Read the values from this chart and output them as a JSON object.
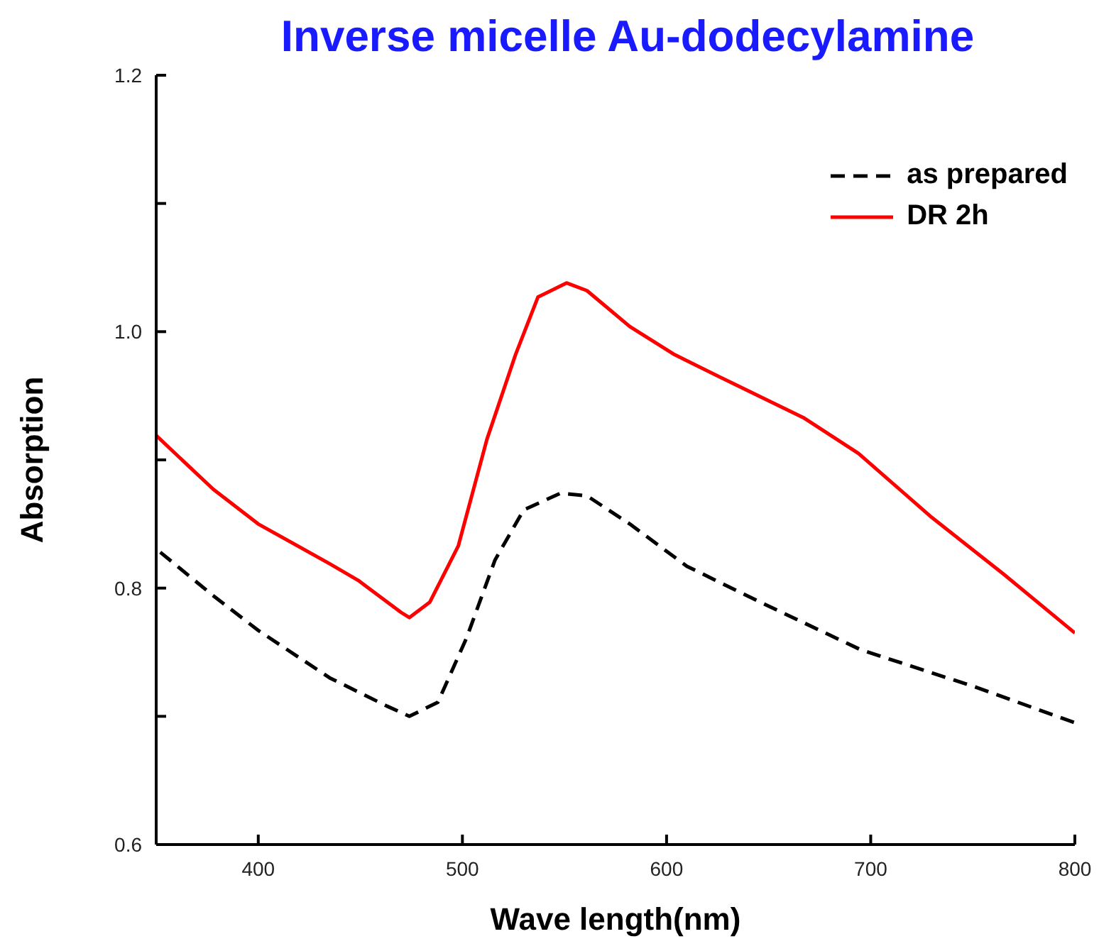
{
  "chart_data": {
    "type": "line",
    "title": "Inverse micelle Au-dodecylamine",
    "xlabel": "Wave length(nm)",
    "ylabel": "Absorption",
    "xlim": [
      350,
      800
    ],
    "xticks": [
      400,
      500,
      600,
      700,
      800
    ],
    "ylim": [
      0.6,
      1.2
    ],
    "yticks": [
      0.6,
      {
        "value": 0.7,
        "label": null
      },
      0.8,
      {
        "value": 0.9,
        "label": null
      },
      {
        "value": 1.0,
        "label": "1.0"
      },
      {
        "value": 1.1,
        "label": null
      },
      1.2
    ],
    "grid": false,
    "legend": "top right",
    "marker": "none",
    "series": [
      {
        "name": "as prepared",
        "color": "#000000",
        "line_style": "dashed",
        "x": [
          352,
          378,
          400,
          435,
          463,
          474,
          488,
          502,
          516,
          530,
          548,
          561,
          582,
          610,
          646,
          695,
          751,
          800
        ],
        "values": [
          0.828,
          0.794,
          0.767,
          0.73,
          0.708,
          0.7,
          0.711,
          0.761,
          0.822,
          0.861,
          0.874,
          0.872,
          0.85,
          0.817,
          0.789,
          0.752,
          0.723,
          0.695
        ]
      },
      {
        "name": "DR 2h",
        "color": "#ff0000",
        "line_style": "solid",
        "x": [
          350,
          378,
          400,
          435,
          449,
          470,
          474,
          484,
          498,
          512,
          526,
          537,
          551,
          561,
          582,
          604,
          632,
          667,
          694,
          730,
          765,
          800
        ],
        "values": [
          0.919,
          0.877,
          0.85,
          0.819,
          0.806,
          0.781,
          0.777,
          0.789,
          0.833,
          0.916,
          0.982,
          1.027,
          1.038,
          1.032,
          1.004,
          0.982,
          0.96,
          0.933,
          0.905,
          0.855,
          0.811,
          0.765
        ]
      }
    ]
  }
}
